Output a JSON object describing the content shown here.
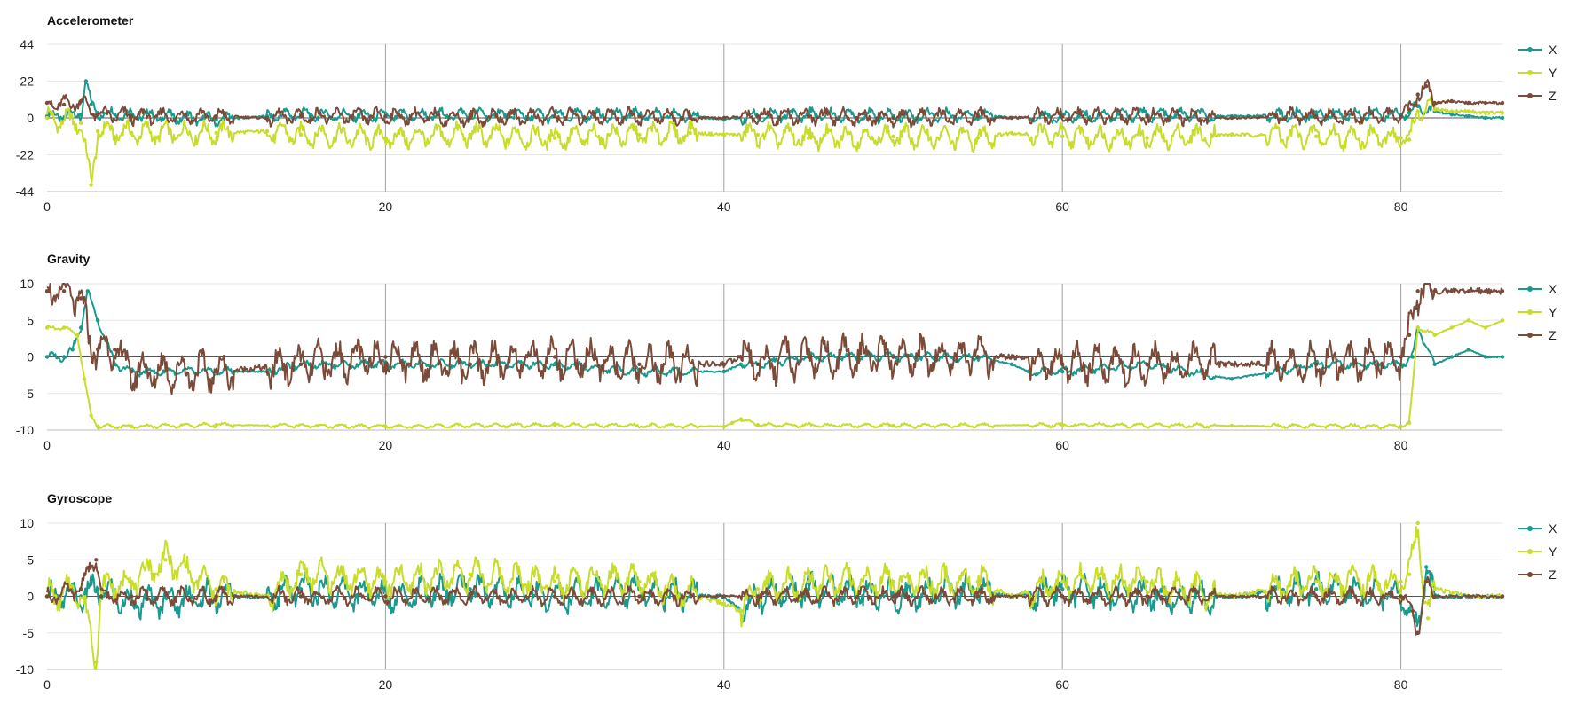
{
  "colors": {
    "X": "#1a9a8d",
    "Y": "#c8dc2b",
    "Z": "#7b4b3a",
    "grid": "#e6e6e6",
    "major_grid": "#a0a0a0",
    "axis_text": "#222222"
  },
  "chart_data": [
    {
      "type": "line",
      "title": "Accelerometer",
      "xlim": [
        0,
        86
      ],
      "ylim": [
        -44,
        44
      ],
      "xticks": [
        "0",
        "20",
        "40",
        "60",
        "80"
      ],
      "yticks": [
        "44",
        "22",
        "0",
        "-22",
        "-44"
      ],
      "legend": "right",
      "series": [
        {
          "name": "X",
          "x": [
            0,
            2,
            2.3,
            2.6,
            3,
            5,
            10,
            13,
            15,
            20,
            25,
            30,
            35,
            38,
            40,
            42,
            45,
            50,
            55,
            57,
            60,
            65,
            70,
            75,
            80,
            80.5,
            81,
            82,
            83,
            84,
            85,
            86
          ],
          "values": [
            1,
            2,
            22,
            8,
            3,
            2,
            -1,
            1,
            2,
            1,
            2,
            1,
            2,
            1,
            -1,
            1,
            2,
            1,
            2,
            0,
            1,
            2,
            1,
            2,
            2,
            3,
            7,
            4,
            2,
            1,
            0,
            0
          ]
        },
        {
          "name": "Y",
          "x": [
            0,
            2,
            2.6,
            3,
            5,
            10,
            13,
            15,
            20,
            25,
            30,
            35,
            38,
            40,
            42,
            45,
            50,
            55,
            57,
            60,
            65,
            70,
            75,
            80,
            80.5,
            81,
            82,
            83,
            84,
            85,
            86
          ],
          "values": [
            0,
            -3,
            -40,
            -8,
            -9,
            -9,
            -8,
            -10,
            -12,
            -10,
            -12,
            -10,
            -9,
            -10,
            -10,
            -12,
            -11,
            -12,
            -9,
            -11,
            -12,
            -10,
            -11,
            -12,
            -13,
            4,
            5,
            4,
            4,
            3,
            3
          ]
        },
        {
          "name": "Z",
          "x": [
            0,
            1,
            2,
            3,
            5,
            10,
            13,
            15,
            20,
            25,
            30,
            35,
            38,
            40,
            42,
            45,
            50,
            55,
            57,
            60,
            65,
            70,
            75,
            80,
            80.5,
            81,
            81.5,
            82,
            83,
            84,
            85,
            86
          ],
          "values": [
            9,
            8,
            10,
            2,
            1,
            1,
            0,
            1,
            1,
            0,
            1,
            1,
            0,
            0,
            1,
            1,
            0,
            1,
            0,
            1,
            1,
            0,
            1,
            1,
            5,
            14,
            19,
            9,
            10,
            9,
            9,
            9
          ]
        }
      ]
    },
    {
      "type": "line",
      "title": "Gravity",
      "xlim": [
        0,
        86
      ],
      "ylim": [
        -10,
        10
      ],
      "xticks": [
        "0",
        "20",
        "40",
        "60",
        "80"
      ],
      "yticks": [
        "10",
        "5",
        "0",
        "-5",
        "-10"
      ],
      "legend": "right",
      "series": [
        {
          "name": "X",
          "x": [
            0,
            1,
            1.5,
            2,
            2.4,
            3,
            4,
            5,
            10,
            13,
            15,
            20,
            25,
            30,
            35,
            40,
            41,
            42,
            45,
            50,
            55,
            57,
            58,
            60,
            65,
            70,
            75,
            80,
            80.7,
            81,
            82,
            83,
            84,
            85,
            86
          ],
          "values": [
            0,
            0,
            1,
            4,
            9,
            5,
            -1,
            -2,
            -2,
            -2,
            -1,
            -1,
            -1,
            -1,
            -2,
            -2,
            -1,
            -1,
            0,
            0,
            0,
            -1,
            -2,
            -2,
            -1,
            -3,
            -1,
            -1,
            0,
            4,
            -1,
            0,
            1,
            0,
            0
          ]
        },
        {
          "name": "Y",
          "x": [
            0,
            1,
            1.8,
            2.2,
            2.6,
            3,
            5,
            10,
            20,
            30,
            40,
            40.5,
            41,
            42,
            50,
            60,
            70,
            80,
            80.5,
            81,
            82,
            83,
            84,
            85,
            86
          ],
          "values": [
            4,
            4,
            3,
            -3,
            -8,
            -9.5,
            -9.5,
            -9.3,
            -9.5,
            -9.3,
            -9.5,
            -9,
            -8.5,
            -9.3,
            -9.4,
            -9.3,
            -9.4,
            -9.5,
            -9,
            4,
            3,
            4,
            5,
            4,
            5
          ]
        },
        {
          "name": "Z",
          "x": [
            0,
            1,
            2,
            2.5,
            3,
            4,
            5,
            10,
            15,
            20,
            25,
            30,
            35,
            40,
            41,
            42,
            45,
            50,
            55,
            57,
            60,
            65,
            70,
            75,
            80,
            80.5,
            81,
            82,
            83,
            84,
            85,
            86
          ],
          "values": [
            9,
            9,
            8,
            2,
            1,
            1,
            -2,
            -2,
            -1,
            0,
            -1,
            0,
            -1,
            -1,
            0,
            -1,
            0,
            0,
            0,
            0,
            -1,
            -1,
            -1,
            -1,
            0,
            3,
            9,
            9,
            9,
            9,
            9,
            9
          ]
        }
      ]
    },
    {
      "type": "line",
      "title": "Gyroscope",
      "xlim": [
        0,
        86
      ],
      "ylim": [
        -10,
        10
      ],
      "xticks": [
        "0",
        "20",
        "40",
        "60",
        "80"
      ],
      "yticks": [
        "10",
        "5",
        "0",
        "-5",
        "-10"
      ],
      "legend": "right",
      "series": [
        {
          "name": "X",
          "x": [
            0,
            2,
            3,
            5,
            10,
            13,
            15,
            20,
            25,
            30,
            35,
            38,
            40,
            41,
            42,
            45,
            50,
            55,
            57,
            60,
            65,
            70,
            75,
            80,
            80.5,
            81,
            81.5,
            82,
            84,
            86
          ],
          "values": [
            0,
            0,
            1,
            -1,
            0,
            0,
            1,
            0,
            1,
            0,
            1,
            0,
            0,
            -2,
            0,
            1,
            0,
            1,
            0,
            1,
            0,
            0,
            1,
            0,
            -2,
            -5,
            4,
            0,
            0,
            0
          ]
        },
        {
          "name": "Y",
          "x": [
            0,
            2,
            2.9,
            3.2,
            5,
            7,
            10,
            13,
            15,
            20,
            25,
            30,
            35,
            40,
            41,
            42,
            45,
            50,
            55,
            57,
            60,
            65,
            70,
            75,
            80,
            80.5,
            81,
            81.3,
            81.6,
            82,
            84,
            86
          ],
          "values": [
            0,
            1,
            -9,
            1,
            2,
            5,
            1,
            0,
            3,
            2,
            3,
            2,
            2,
            -1,
            -2,
            1,
            2,
            2,
            2,
            0,
            2,
            2,
            0,
            2,
            2,
            3,
            10,
            2,
            -3,
            1,
            0,
            0
          ]
        },
        {
          "name": "Z",
          "x": [
            0,
            2,
            2.5,
            2.9,
            3.2,
            5,
            10,
            15,
            20,
            25,
            30,
            35,
            40,
            42,
            45,
            50,
            55,
            60,
            65,
            70,
            75,
            80,
            80.7,
            81,
            81.5,
            82,
            84,
            86
          ],
          "values": [
            0,
            1,
            4,
            5,
            0,
            0,
            0,
            0,
            0,
            0,
            0,
            0,
            0,
            0,
            0,
            0,
            0,
            0,
            0,
            0,
            0,
            0,
            -2,
            -5,
            2,
            0,
            0,
            0
          ]
        }
      ]
    }
  ]
}
